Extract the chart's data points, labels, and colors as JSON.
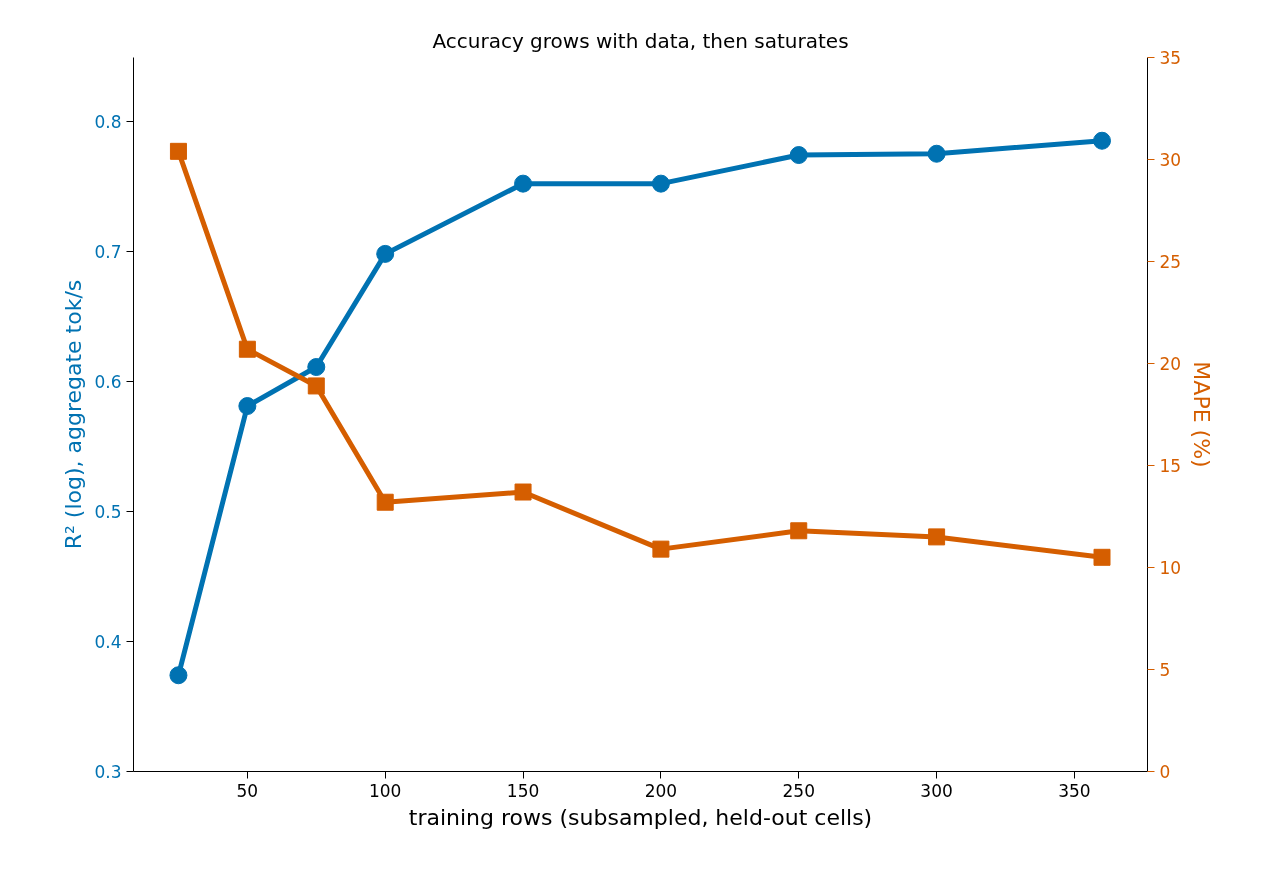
{
  "chart_data": {
    "type": "line",
    "title": "Accuracy grows with data, then saturates",
    "xlabel": "training rows (subsampled, held-out cells)",
    "ylabel": "R² (log), aggregate tok/s",
    "y2label": "MAPE (%)",
    "x": [
      25,
      50,
      75,
      100,
      150,
      200,
      250,
      300,
      360
    ],
    "series": [
      {
        "color": "#0072b2",
        "marker": "circle",
        "values": [
          0.374,
          0.581,
          0.611,
          0.698,
          0.752,
          0.752,
          0.774,
          0.775,
          0.785
        ]
      },
      {
        "color": "#d55e00",
        "marker": "square",
        "axis": "y2",
        "values": [
          30.4,
          20.7,
          18.9,
          13.2,
          13.7,
          10.9,
          11.8,
          11.5,
          10.5
        ]
      }
    ],
    "xlim": [
      8.7,
      376.5
    ],
    "xticks": [
      50,
      100,
      150,
      200,
      250,
      300,
      350
    ],
    "ylim": [
      0.3,
      0.849
    ],
    "yticks": [
      0.3,
      0.4,
      0.5,
      0.6,
      0.7,
      0.8
    ],
    "y2lim": [
      0,
      35
    ],
    "y2ticks": [
      0,
      5,
      10,
      15,
      20,
      25,
      30,
      35
    ],
    "grid": false,
    "line_style": "solid"
  }
}
